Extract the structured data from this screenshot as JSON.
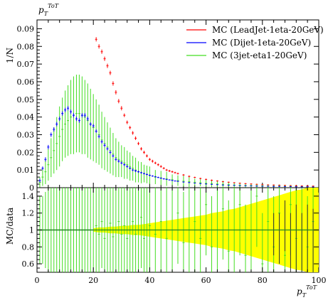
{
  "chart_data": [
    {
      "type": "scatter",
      "panel": "main",
      "title": "p_T^ToT",
      "ylabel": "1/N",
      "xlim": [
        0,
        100
      ],
      "ylim": [
        0,
        0.095
      ],
      "yticks": [
        {
          "v": 0,
          "label": "0"
        },
        {
          "v": 0.01,
          "label": "0.01"
        },
        {
          "v": 0.02,
          "label": "0.02"
        },
        {
          "v": 0.03,
          "label": "0.03"
        },
        {
          "v": 0.04,
          "label": "0.04"
        },
        {
          "v": 0.05,
          "label": "0.05"
        },
        {
          "v": 0.06,
          "label": "0.06"
        },
        {
          "v": 0.07,
          "label": "0.07"
        },
        {
          "v": 0.08,
          "label": "0.08"
        },
        {
          "v": 0.09,
          "label": "0.09"
        }
      ],
      "legend_position": "top-right",
      "series": [
        {
          "name": "MC (LeadJet-1eta-20GeV)",
          "color": "#ff0000",
          "x": [
            21,
            22,
            23,
            24,
            25,
            26,
            27,
            28,
            29,
            30,
            31,
            32,
            33,
            34,
            35,
            36,
            37,
            38,
            39,
            40,
            41,
            42,
            43,
            44,
            45,
            46,
            47,
            48,
            49,
            50,
            52,
            54,
            56,
            58,
            60,
            62,
            64,
            66,
            68,
            70,
            72,
            74,
            76,
            78,
            80,
            82,
            84,
            86,
            88,
            90,
            92,
            94,
            96,
            98
          ],
          "y": [
            0.084,
            0.08,
            0.077,
            0.073,
            0.069,
            0.065,
            0.059,
            0.054,
            0.049,
            0.045,
            0.041,
            0.037,
            0.034,
            0.031,
            0.028,
            0.025,
            0.022,
            0.02,
            0.018,
            0.016,
            0.015,
            0.014,
            0.013,
            0.012,
            0.011,
            0.01,
            0.0095,
            0.009,
            0.0085,
            0.008,
            0.0072,
            0.0064,
            0.0058,
            0.0052,
            0.0047,
            0.0042,
            0.0038,
            0.0034,
            0.0031,
            0.0028,
            0.0025,
            0.0023,
            0.0021,
            0.0019,
            0.0017,
            0.0016,
            0.0015,
            0.0014,
            0.0013,
            0.0012,
            0.0011,
            0.001,
            0.001,
            0.0009
          ],
          "err": [
            0.0012,
            0.0012,
            0.0012,
            0.0012,
            0.0012,
            0.0012,
            0.0012,
            0.0012,
            0.0012,
            0.0012,
            0.001,
            0.001,
            0.001,
            0.001,
            0.001,
            0.0009,
            0.0009,
            0.0009,
            0.0008,
            0.0008,
            0.0008,
            0.0007,
            0.0007,
            0.0007,
            0.0006,
            0.0006,
            0.0006,
            0.0006,
            0.0005,
            0.0005,
            0.0005,
            0.0005,
            0.0004,
            0.0004,
            0.0004,
            0.0004,
            0.0003,
            0.0003,
            0.0003,
            0.0003,
            0.0003,
            0.0003,
            0.0003,
            0.0002,
            0.0002,
            0.0002,
            0.0002,
            0.0002,
            0.0002,
            0.0002,
            0.0002,
            0.0002,
            0.0002,
            0.0002
          ]
        },
        {
          "name": "MC (Dijet-1eta-20GeV)",
          "color": "#0000ff",
          "x": [
            1,
            2,
            3,
            4,
            5,
            6,
            7,
            8,
            9,
            10,
            11,
            12,
            13,
            14,
            15,
            16,
            17,
            18,
            19,
            20,
            21,
            22,
            23,
            24,
            25,
            26,
            27,
            28,
            29,
            30,
            31,
            32,
            33,
            34,
            35,
            36,
            37,
            38,
            39,
            40,
            41,
            42,
            43,
            44,
            45,
            46,
            47,
            48,
            49,
            50,
            52,
            54,
            56,
            58,
            60,
            62,
            64,
            66,
            68,
            70,
            72,
            74,
            76,
            78,
            80,
            82,
            84,
            86,
            88,
            90,
            92,
            94,
            96,
            98
          ],
          "y": [
            0.004,
            0.011,
            0.016,
            0.023,
            0.03,
            0.033,
            0.036,
            0.039,
            0.042,
            0.044,
            0.045,
            0.043,
            0.041,
            0.039,
            0.038,
            0.041,
            0.041,
            0.039,
            0.036,
            0.035,
            0.032,
            0.029,
            0.026,
            0.024,
            0.022,
            0.02,
            0.018,
            0.016,
            0.015,
            0.014,
            0.013,
            0.012,
            0.011,
            0.01,
            0.0095,
            0.009,
            0.0085,
            0.008,
            0.0075,
            0.007,
            0.0066,
            0.0062,
            0.0058,
            0.0054,
            0.005,
            0.0047,
            0.0044,
            0.0041,
            0.0038,
            0.0036,
            0.0032,
            0.0029,
            0.0026,
            0.0023,
            0.0021,
            0.0019,
            0.0017,
            0.0015,
            0.0014,
            0.0013,
            0.0012,
            0.0011,
            0.001,
            0.0009,
            0.0008,
            0.0008,
            0.0007,
            0.0007,
            0.0006,
            0.0006,
            0.0005,
            0.0005,
            0.0005,
            0.0004
          ],
          "err": [
            0.001,
            0.001,
            0.0012,
            0.0012,
            0.0012,
            0.0012,
            0.0012,
            0.0012,
            0.0012,
            0.0012,
            0.0012,
            0.0012,
            0.0012,
            0.0012,
            0.0012,
            0.0012,
            0.0012,
            0.0012,
            0.001,
            0.001,
            0.001,
            0.001,
            0.001,
            0.001,
            0.0009,
            0.0009,
            0.0008,
            0.0008,
            0.0008,
            0.0007,
            0.0007,
            0.0007,
            0.0006,
            0.0006,
            0.0006,
            0.0006,
            0.0005,
            0.0005,
            0.0005,
            0.0005,
            0.0004,
            0.0004,
            0.0004,
            0.0004,
            0.0004,
            0.0003,
            0.0003,
            0.0003,
            0.0003,
            0.0003,
            0.0003,
            0.0003,
            0.0002,
            0.0002,
            0.0002,
            0.0002,
            0.0002,
            0.0002,
            0.0002,
            0.0002,
            0.0002,
            0.0002,
            0.0002,
            0.0002,
            0.0002,
            0.0002,
            0.0002,
            0.0002,
            0.0002,
            0.0002,
            0.0002,
            0.0002,
            0.0002,
            0.0002
          ]
        },
        {
          "name": "MC (3jet-eta1-20GeV)",
          "color": "#44dd22",
          "x": [
            1,
            2,
            3,
            4,
            5,
            6,
            7,
            8,
            9,
            10,
            11,
            12,
            13,
            14,
            15,
            16,
            17,
            18,
            19,
            20,
            21,
            22,
            23,
            24,
            25,
            26,
            27,
            28,
            29,
            30,
            31,
            32,
            33,
            34,
            35,
            36,
            37,
            38,
            39,
            40,
            42,
            44,
            46,
            48,
            50,
            52,
            54,
            56,
            58,
            60,
            62,
            64,
            66,
            68,
            70,
            72,
            74,
            76,
            78,
            80,
            82,
            84,
            86,
            88,
            90,
            92,
            94,
            96,
            98
          ],
          "y": [
            0.003,
            0.006,
            0.009,
            0.013,
            0.017,
            0.021,
            0.025,
            0.029,
            0.033,
            0.036,
            0.038,
            0.04,
            0.041,
            0.042,
            0.042,
            0.041,
            0.04,
            0.038,
            0.036,
            0.034,
            0.032,
            0.03,
            0.027,
            0.025,
            0.023,
            0.021,
            0.019,
            0.017,
            0.016,
            0.015,
            0.014,
            0.013,
            0.012,
            0.011,
            0.01,
            0.009,
            0.0085,
            0.008,
            0.0075,
            0.007,
            0.006,
            0.0055,
            0.005,
            0.0045,
            0.004,
            0.0037,
            0.0034,
            0.0031,
            0.0028,
            0.0025,
            0.0023,
            0.0021,
            0.0019,
            0.0017,
            0.0015,
            0.0014,
            0.0013,
            0.0012,
            0.0011,
            0.001,
            0.0009,
            0.0008,
            0.0008,
            0.0007,
            0.0007,
            0.0006,
            0.0006,
            0.0005,
            0.0005
          ],
          "err": [
            0.003,
            0.005,
            0.007,
            0.009,
            0.011,
            0.013,
            0.015,
            0.017,
            0.018,
            0.019,
            0.02,
            0.021,
            0.022,
            0.022,
            0.022,
            0.022,
            0.021,
            0.021,
            0.02,
            0.019,
            0.018,
            0.017,
            0.016,
            0.015,
            0.014,
            0.013,
            0.012,
            0.011,
            0.01,
            0.009,
            0.009,
            0.008,
            0.008,
            0.007,
            0.007,
            0.006,
            0.006,
            0.005,
            0.005,
            0.005,
            0.004,
            0.004,
            0.004,
            0.003,
            0.003,
            0.003,
            0.003,
            0.002,
            0.002,
            0.002,
            0.002,
            0.002,
            0.002,
            0.0015,
            0.0015,
            0.0015,
            0.0012,
            0.0012,
            0.0012,
            0.001,
            0.001,
            0.001,
            0.001,
            0.0008,
            0.0008,
            0.0008,
            0.0007,
            0.0007,
            0.0007
          ]
        }
      ]
    },
    {
      "type": "scatter",
      "panel": "ratio",
      "ylabel": "MC/data",
      "xlabel": "p_T^ToT",
      "xlim": [
        0,
        100
      ],
      "ylim": [
        0.5,
        1.5
      ],
      "xticks": [
        {
          "v": 0,
          "label": "0"
        },
        {
          "v": 20,
          "label": "20"
        },
        {
          "v": 40,
          "label": "40"
        },
        {
          "v": 60,
          "label": "60"
        },
        {
          "v": 80,
          "label": "80"
        },
        {
          "v": 100,
          "label": "100"
        }
      ],
      "yticks": [
        {
          "v": 0.6,
          "label": "0.6"
        },
        {
          "v": 0.8,
          "label": "0.8"
        },
        {
          "v": 1.0,
          "label": "1"
        },
        {
          "v": 1.2,
          "label": "1.2"
        },
        {
          "v": 1.4,
          "label": "1.4"
        }
      ],
      "reference_line": 1.0,
      "band": {
        "color": "#ffff00",
        "x": [
          20,
          22,
          24,
          26,
          28,
          30,
          32,
          34,
          36,
          38,
          40,
          42,
          44,
          46,
          48,
          50,
          52,
          54,
          56,
          58,
          60,
          62,
          64,
          66,
          68,
          70,
          72,
          74,
          76,
          78,
          80,
          82,
          84,
          86,
          88,
          90,
          92,
          94,
          96,
          98,
          100
        ],
        "half_width": [
          0.02,
          0.03,
          0.03,
          0.04,
          0.04,
          0.05,
          0.05,
          0.06,
          0.06,
          0.07,
          0.08,
          0.09,
          0.1,
          0.11,
          0.12,
          0.13,
          0.14,
          0.15,
          0.16,
          0.17,
          0.18,
          0.2,
          0.21,
          0.22,
          0.24,
          0.25,
          0.27,
          0.29,
          0.31,
          0.33,
          0.35,
          0.37,
          0.39,
          0.41,
          0.43,
          0.45,
          0.47,
          0.48,
          0.5,
          0.5,
          0.5
        ]
      },
      "green_points": {
        "color": "#44dd22",
        "x": [
          1,
          2,
          3,
          4,
          5,
          6,
          7,
          8,
          9,
          10,
          11,
          12,
          13,
          14,
          15,
          16,
          17,
          18,
          19,
          20,
          21,
          22,
          23,
          24,
          25,
          26,
          27,
          28,
          29,
          30,
          31,
          32,
          33,
          34,
          35,
          36,
          37,
          38,
          39,
          40,
          42,
          44,
          46,
          48,
          50,
          52,
          54,
          56,
          58,
          60,
          62,
          64,
          66,
          68,
          70,
          72,
          74,
          76,
          78,
          80,
          82,
          84,
          86,
          88,
          90,
          92,
          94,
          96,
          98
        ],
        "y": [
          1.0,
          1.0,
          1.0,
          1.0,
          1.0,
          1.0,
          1.0,
          1.0,
          1.0,
          1.0,
          1.0,
          1.0,
          1.0,
          1.0,
          1.0,
          1.0,
          1.0,
          1.0,
          1.0,
          1.0,
          1.05,
          0.95,
          1.1,
          0.9,
          1.0,
          1.08,
          0.92,
          1.0,
          1.1,
          0.95,
          1.05,
          0.9,
          1.0,
          1.1,
          0.95,
          1.0,
          1.15,
          0.9,
          1.0,
          1.05,
          0.95,
          1.1,
          0.9,
          1.0,
          1.2,
          0.85,
          1.0,
          1.1,
          0.9,
          1.3,
          0.8,
          1.0,
          1.25,
          0.75,
          1.0,
          1.3,
          0.7,
          1.0,
          1.4,
          0.6,
          1.1,
          0.8,
          1.2,
          0.7,
          1.3,
          0.9,
          1.0,
          0.8,
          1.1
        ],
        "err": [
          0.4,
          0.4,
          0.45,
          0.5,
          0.5,
          0.55,
          0.55,
          0.55,
          0.55,
          0.55,
          0.5,
          0.5,
          0.5,
          0.5,
          0.5,
          0.5,
          0.5,
          0.55,
          0.55,
          0.55,
          0.55,
          0.55,
          0.55,
          0.6,
          0.6,
          0.6,
          0.6,
          0.6,
          0.6,
          0.6,
          0.6,
          0.6,
          0.6,
          0.6,
          0.6,
          0.6,
          0.6,
          0.6,
          0.6,
          0.6,
          0.6,
          0.6,
          0.6,
          0.6,
          0.6,
          0.6,
          0.6,
          0.6,
          0.6,
          0.6,
          0.6,
          0.6,
          0.6,
          0.6,
          0.6,
          0.6,
          0.6,
          0.6,
          0.6,
          0.6,
          0.6,
          0.6,
          0.6,
          0.6,
          0.6,
          0.6,
          0.6,
          0.6,
          0.6
        ]
      },
      "dark_points": {
        "color": "#333333",
        "x": [
          84,
          86,
          88,
          90,
          92,
          94,
          96,
          98
        ],
        "y": [
          0.95,
          0.9,
          1.05,
          0.85,
          0.9,
          0.8,
          0.85,
          0.75
        ],
        "err": [
          0.25,
          0.3,
          0.3,
          0.35,
          0.4,
          0.4,
          0.45,
          0.5
        ]
      }
    }
  ],
  "axis_symbol": {
    "base": "p",
    "sub": "T",
    "sup": "ToT"
  }
}
